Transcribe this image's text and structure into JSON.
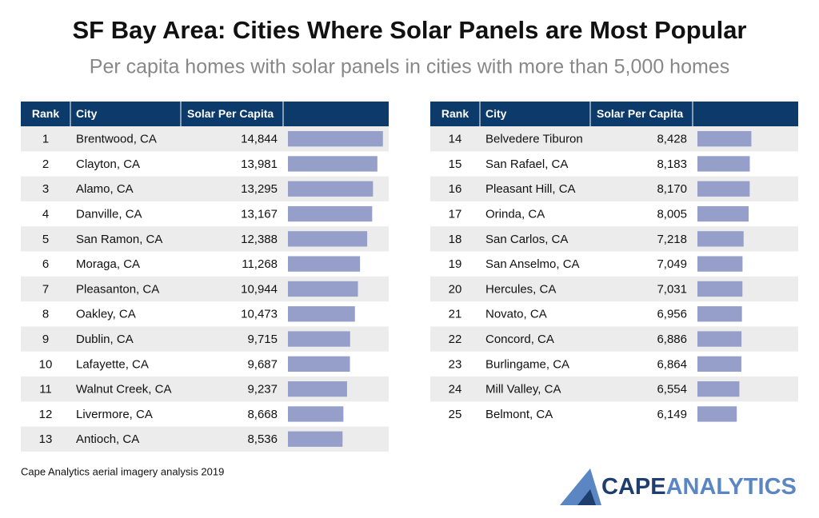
{
  "chart_data": {
    "type": "table_bar",
    "title": "SF Bay Area: Cities Where Solar Panels are Most Popular",
    "subtitle": "Per capita homes with solar panels in cities with more than 5,000 homes",
    "columns": [
      "Rank",
      "City",
      "Solar Per Capita"
    ],
    "ranks": [
      1,
      2,
      3,
      4,
      5,
      6,
      7,
      8,
      9,
      10,
      11,
      12,
      13,
      14,
      15,
      16,
      17,
      18,
      19,
      20,
      21,
      22,
      23,
      24,
      25
    ],
    "categories": [
      "Brentwood, CA",
      "Clayton, CA",
      "Alamo, CA",
      "Danville, CA",
      "San Ramon, CA",
      "Moraga, CA",
      "Pleasanton, CA",
      "Oakley, CA",
      "Dublin, CA",
      "Lafayette, CA",
      "Walnut Creek, CA",
      "Livermore, CA",
      "Antioch, CA",
      "Belvedere Tiburon",
      "San Rafael, CA",
      "Pleasant Hill, CA",
      "Orinda, CA",
      "San Carlos, CA",
      "San Anselmo, CA",
      "Hercules, CA",
      "Novato, CA",
      "Concord, CA",
      "Burlingame, CA",
      "Mill Valley, CA",
      "Belmont, CA"
    ],
    "values": [
      14844,
      13981,
      13295,
      13167,
      12388,
      11268,
      10944,
      10473,
      9715,
      9687,
      9237,
      8668,
      8536,
      8428,
      8183,
      8170,
      8005,
      7218,
      7049,
      7031,
      6956,
      6886,
      6864,
      6554,
      6149
    ],
    "value_labels": [
      "14,844",
      "13,981",
      "13,295",
      "13,167",
      "12,388",
      "11,268",
      "10,944",
      "10,473",
      "9,715",
      "9,687",
      "9,237",
      "8,668",
      "8,536",
      "8,428",
      "8,183",
      "8,170",
      "8,005",
      "7,218",
      "7,049",
      "7,031",
      "6,956",
      "6,886",
      "6,864",
      "6,554",
      "6,149"
    ],
    "color": "#959fc9",
    "xlim": [
      0,
      15000
    ]
  },
  "source": "Cape Analytics aerial imagery analysis 2019",
  "logo": {
    "part1": "CAPE",
    "part2": "ANALYTICS"
  }
}
